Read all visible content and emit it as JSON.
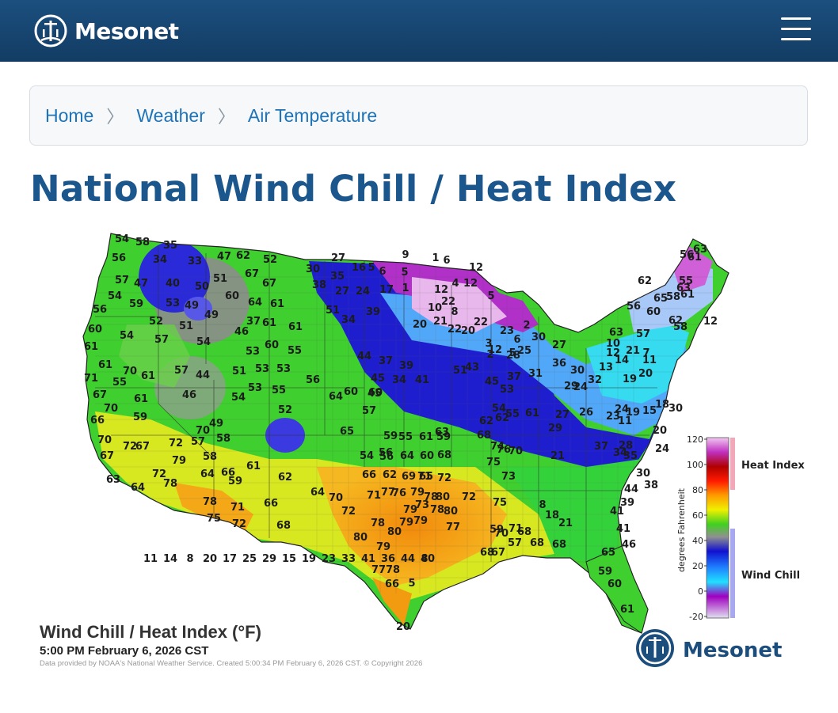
{
  "header": {
    "brand": "Mesonet",
    "logo_icon": "mesonet-logo-icon",
    "menu_icon": "hamburger-menu-icon",
    "bg_color": "#174670"
  },
  "breadcrumb": {
    "items": [
      "Home",
      "Weather",
      "Air Temperature"
    ],
    "separator": "〉",
    "link_color": "#1f73b7"
  },
  "page": {
    "title": "National Wind Chill / Heat Index",
    "title_color": "#1b568d"
  },
  "map": {
    "caption_title": "Wind Chill / Heat Index (°F)",
    "caption_time": "5:00 PM February 6, 2026 CST",
    "caption_credit": "Data provided by NOAA's National Weather Service. Created 5:00:34 PM February 6, 2026 CST. © Copyright 2026",
    "watermark": "Mesonet",
    "legend": {
      "ticks": [
        "120",
        "100",
        "80",
        "60",
        "40",
        "20",
        "0",
        "-20"
      ],
      "axis_label": "degrees Fahrenheit",
      "heat_index_label": "Heat Index",
      "wind_chill_label": "Wind Chill"
    },
    "station_values": [
      "54",
      "58",
      "35",
      "34",
      "33",
      "47",
      "62",
      "52",
      "56",
      "57",
      "47",
      "40",
      "50",
      "51",
      "67",
      "67",
      "54",
      "59",
      "53",
      "49",
      "60",
      "64",
      "61",
      "56",
      "52",
      "51",
      "49",
      "37",
      "61",
      "61",
      "60",
      "54",
      "57",
      "54",
      "46",
      "53",
      "60",
      "55",
      "61",
      "70",
      "61",
      "57",
      "44",
      "51",
      "53",
      "53",
      "71",
      "55",
      "46",
      "61",
      "54",
      "53",
      "55",
      "67",
      "61",
      "52",
      "70",
      "59",
      "49",
      "58",
      "57",
      "66",
      "70",
      "72",
      "67",
      "72",
      "70",
      "58",
      "67",
      "79",
      "72",
      "64",
      "66",
      "61",
      "62",
      "63",
      "64",
      "78",
      "59",
      "78",
      "71",
      "66",
      "75",
      "72",
      "68",
      "30",
      "27",
      "16",
      "5",
      "6",
      "35",
      "38",
      "27",
      "24",
      "17",
      "51",
      "34",
      "39",
      "44",
      "37",
      "39",
      "45",
      "34",
      "41",
      "45",
      "56",
      "64",
      "60",
      "60",
      "57",
      "65",
      "59",
      "56",
      "55",
      "61",
      "59",
      "54",
      "56",
      "64",
      "60",
      "68",
      "66",
      "62",
      "69",
      "65",
      "72",
      "71",
      "77",
      "71",
      "64",
      "70",
      "72",
      "76",
      "79",
      "78",
      "80",
      "79",
      "73",
      "78",
      "80",
      "72",
      "77",
      "79",
      "79",
      "78",
      "80",
      "80",
      "79",
      "77",
      "78",
      "66",
      "5",
      "8",
      "20",
      "9",
      "1",
      "6",
      "12",
      "5",
      "1",
      "4",
      "12",
      "12",
      "22",
      "10",
      "5",
      "8",
      "21",
      "20",
      "22",
      "22",
      "20",
      "23",
      "2",
      "5",
      "6",
      "12",
      "3",
      "2",
      "28",
      "25",
      "30",
      "27",
      "36",
      "31",
      "37",
      "43",
      "51",
      "45",
      "53",
      "55",
      "61",
      "62",
      "54",
      "62",
      "63",
      "70",
      "68",
      "74",
      "76",
      "75",
      "73",
      "75",
      "71",
      "70",
      "68",
      "67",
      "59",
      "57",
      "68",
      "68",
      "68",
      "8",
      "18",
      "21",
      "21",
      "29",
      "27",
      "30",
      "24",
      "32",
      "29",
      "26",
      "23",
      "11",
      "28",
      "35",
      "37",
      "34",
      "30",
      "38",
      "44",
      "39",
      "41",
      "41",
      "46",
      "65",
      "59",
      "60",
      "61",
      "63",
      "61",
      "56",
      "55",
      "62",
      "63",
      "65",
      "61",
      "58",
      "56",
      "60",
      "58",
      "57",
      "63",
      "62",
      "12",
      "7",
      "12",
      "10",
      "21",
      "14",
      "11",
      "20",
      "13",
      "19",
      "24",
      "19",
      "15",
      "18",
      "30",
      "24",
      "20",
      "11",
      "14",
      "8",
      "20",
      "17",
      "25",
      "29",
      "15",
      "19",
      "23",
      "33",
      "41",
      "36",
      "44",
      "40"
    ]
  },
  "colors": {
    "wind_chill_blue": "#1616d8",
    "heat_orange": "#f29a10",
    "mild_green": "#2fcc26"
  }
}
